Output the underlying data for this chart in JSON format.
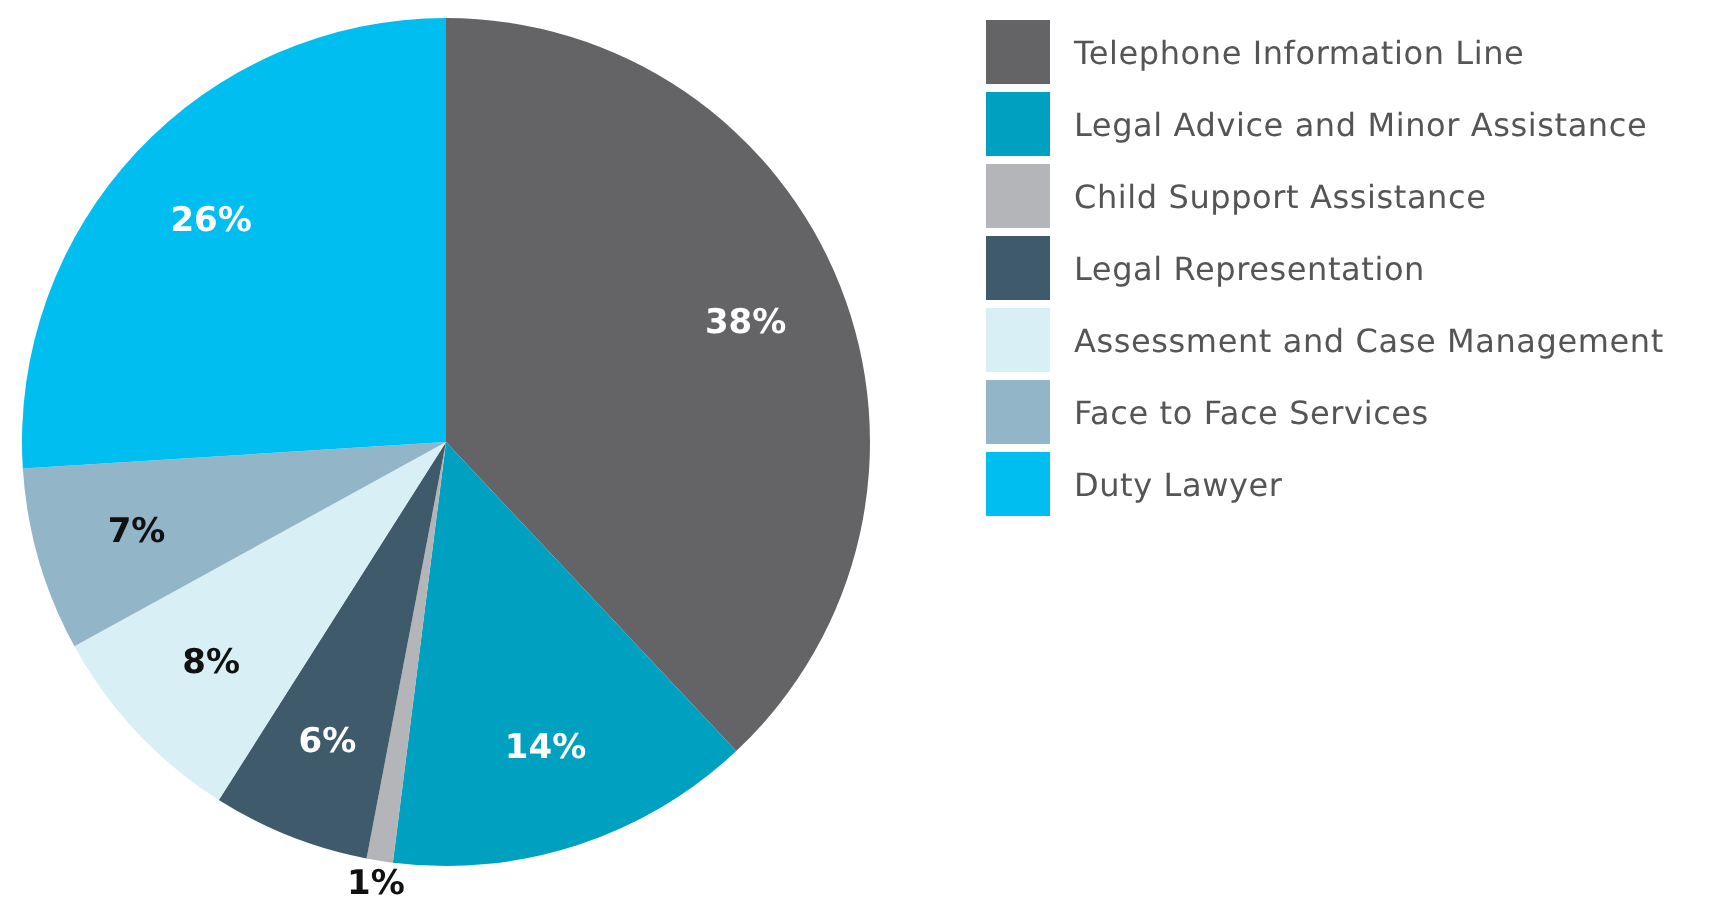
{
  "chart_data": {
    "type": "pie",
    "categories": [
      "Telephone Information Line",
      "Legal Advice and Minor Assistance",
      "Child Support Assistance",
      "Legal Representation",
      "Assessment and Case Management",
      "Face to Face Services",
      "Duty Lawyer"
    ],
    "values": [
      38,
      14,
      1,
      6,
      8,
      7,
      26
    ],
    "value_labels": [
      "38%",
      "14%",
      "1%",
      "6%",
      "8%",
      "7%",
      "26%"
    ],
    "colors": [
      "#646466",
      "#00a0c0",
      "#b3b5b8",
      "#3f5a6b",
      "#d9eff6",
      "#93b5c8",
      "#00bef0"
    ],
    "legend": "right"
  }
}
